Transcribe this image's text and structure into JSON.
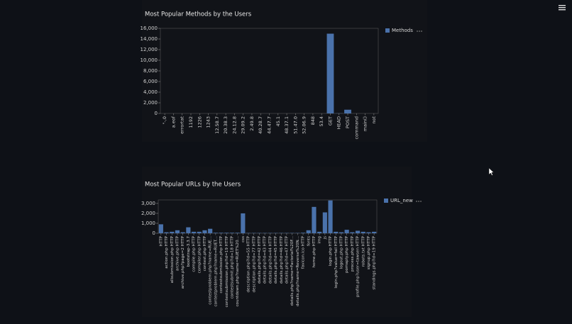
{
  "chart_data": [
    {
      "type": "bar",
      "title": "Most Popular Methods by the Users",
      "categories": [
        "\"-,0",
        "a.eof",
        "errortat",
        "1192",
        "1226",
        "1243",
        "12.58.7",
        "20.38.3",
        "24.12.8",
        "29.09.2",
        "2.49.8",
        "40.28.7",
        "44.47.7",
        "45.1",
        "48.37.1",
        "51.47.0",
        "52.06.9",
        "848",
        "53.4",
        "GET",
        "HEAD",
        "POST",
        "command",
        "main()",
        "not"
      ],
      "series": [
        {
          "name": "Methods",
          "color": "#4a72ab",
          "values": [
            0,
            0,
            0,
            0,
            0,
            0,
            0,
            0,
            0,
            0,
            0,
            0,
            0,
            0,
            0,
            0,
            0,
            0,
            0,
            15000,
            30,
            700,
            0,
            0,
            0
          ]
        }
      ],
      "ylim": [
        0,
        16000
      ],
      "yticks": [
        0,
        {
          "value": 2000,
          "label": "2,000"
        },
        {
          "value": 4000,
          "label": "4,000"
        },
        {
          "value": 6000,
          "label": "6,000"
        },
        {
          "value": 8000,
          "label": "8,000"
        },
        {
          "value": 10000,
          "label": "10,000"
        },
        {
          "value": 12000,
          "label": "12,000"
        },
        {
          "value": 14000,
          "label": "14,000"
        },
        {
          "value": 16000,
          "label": "16,000"
        }
      ],
      "grid": false,
      "legend": "right"
    },
    {
      "type": "bar",
      "title": "Most Popular URLs by the Users",
      "categories": [
        "HTTP",
        "action.php HTTP",
        "allsubmission.php HTTP",
        "archive.php HTTP",
        "archive.php?page=2 HTTP",
        "bootstrap-3.3.7",
        "compile.php HTTP",
        "compiler.php HTTP",
        "contest.php HTTP",
        "contestproblem.php?name=RUE...",
        "contestproblem.php?name=RUET...",
        "contestsubmission.php HTTP",
        "contestsubmission.php?id=19 HTTP",
        "contestsubmit.php?id=18 HTTP",
        "countdown.php?name=RUET%20...",
        "css",
        "description.php?id=55 HTTP",
        "description.php?id=77 HTTP",
        "details.php?id=42 HTTP",
        "details.php?id=43 HTTP",
        "details.php?id=44 HTTP",
        "details.php?id=45 HTTP",
        "details.php?id=46 HTTP",
        "details.php?id=47 HTTP",
        "details.php?name=Factorial%20F...",
        "details.php?name=Reverse%20N...",
        "favicon.ico HTTP",
        "fonts",
        "home.php HTTP",
        "img",
        "js",
        "login.php HTTP",
        "login.php?value=fail HTTP",
        "logout.php HTTP",
        "pomaply.php HTTP",
        "process.php HTTP",
        "profile.php?user=tawsen HTTP",
        "robots.txt HTTP",
        "signup.php HTTP",
        "standings.php?id=19 HTTP"
      ],
      "series": [
        {
          "name": "URL_new",
          "color": "#4a72ab",
          "values": [
            900,
            100,
            150,
            300,
            100,
            600,
            150,
            150,
            300,
            450,
            50,
            50,
            50,
            50,
            50,
            2000,
            30,
            30,
            30,
            30,
            30,
            30,
            30,
            30,
            30,
            30,
            50,
            300,
            2650,
            150,
            2100,
            3300,
            150,
            100,
            350,
            100,
            250,
            150,
            100,
            150
          ]
        }
      ],
      "ylim": [
        0,
        3350
      ],
      "yticks": [
        0,
        {
          "value": 1000,
          "label": "1,000"
        },
        {
          "value": 2000,
          "label": "2,000"
        },
        {
          "value": 3000,
          "label": "3,000"
        }
      ],
      "grid": false,
      "legend": "right"
    }
  ]
}
